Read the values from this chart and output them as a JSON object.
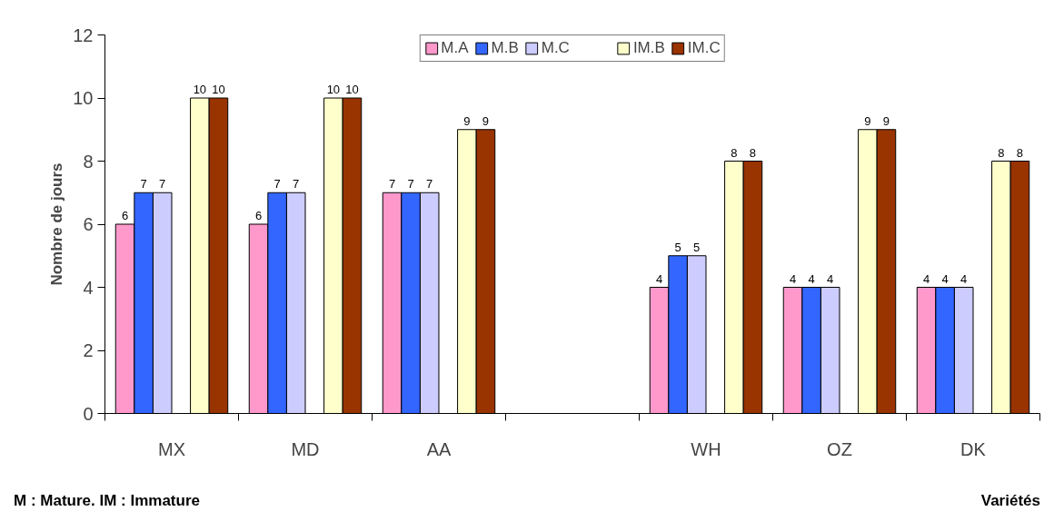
{
  "chart_data": {
    "type": "bar",
    "ylabel": "Nombre de jours",
    "xlabel": "Variétés",
    "annotations": [
      "M : Mature. IM : Immature"
    ],
    "categories": [
      "MX",
      "MD",
      "AA",
      null,
      "WH",
      "OZ",
      "DK"
    ],
    "series": [
      {
        "name": "M.A",
        "color": "#ff99cc",
        "values": [
          6,
          6,
          7,
          null,
          4,
          4,
          4
        ]
      },
      {
        "name": "M.B",
        "color": "#3366ff",
        "values": [
          7,
          7,
          7,
          null,
          5,
          4,
          4
        ]
      },
      {
        "name": "M.C",
        "color": "#ccccff",
        "values": [
          7,
          7,
          7,
          null,
          5,
          4,
          4
        ]
      },
      {
        "color": "#660066",
        "values": [
          null,
          null,
          null,
          null,
          null,
          null,
          null
        ]
      },
      {
        "name": "IM.B",
        "color": "#ffffcc",
        "values": [
          10,
          10,
          9,
          null,
          8,
          9,
          8
        ]
      },
      {
        "name": "IM.C",
        "color": "#993300",
        "values": [
          10,
          10,
          9,
          null,
          8,
          9,
          8
        ]
      }
    ],
    "ylim": [
      0,
      12
    ],
    "yticks": [
      0,
      2,
      4,
      6,
      8,
      10,
      12
    ],
    "grid": false,
    "legend": "top",
    "data_labels": true
  }
}
